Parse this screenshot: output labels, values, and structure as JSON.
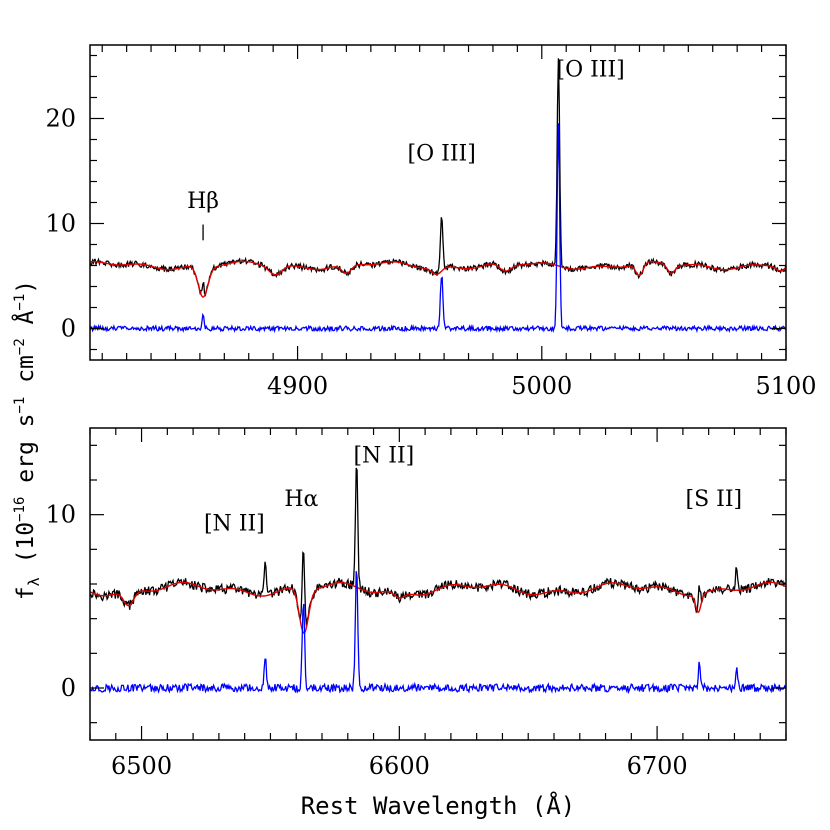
{
  "chart_data": [
    {
      "type": "line",
      "panel": "top",
      "xlim": [
        4815,
        5100
      ],
      "ylim": [
        -3,
        27
      ],
      "x_ticks": [
        4900,
        5000,
        5100
      ],
      "y_ticks": [
        0,
        10,
        20
      ],
      "x_tick_labels": [
        "4900",
        "5000",
        "5100"
      ],
      "y_tick_labels": [
        "0",
        "10",
        "20"
      ],
      "continuum_level": 6.0,
      "series": [
        {
          "role": "observed",
          "color": "#000000"
        },
        {
          "role": "model",
          "color": "#e00000"
        },
        {
          "role": "residual",
          "color": "#0000ff"
        }
      ],
      "absorption": [
        {
          "x": 4861.3,
          "depth": 3.0,
          "sigma": 2.0
        },
        {
          "x": 4891,
          "depth": 0.8,
          "sigma": 2.5
        },
        {
          "x": 4920,
          "depth": 0.9,
          "sigma": 2.0
        },
        {
          "x": 4957,
          "depth": 0.7,
          "sigma": 2.0
        },
        {
          "x": 4985,
          "depth": 0.8,
          "sigma": 2.5
        },
        {
          "x": 5040,
          "depth": 1.2,
          "sigma": 1.5
        },
        {
          "x": 5053,
          "depth": 0.8,
          "sigma": 1.5
        },
        {
          "x": 5098,
          "depth": 0.6,
          "sigma": 2.0
        }
      ],
      "emission": [
        {
          "x": 4861.3,
          "height": 1.4,
          "sigma": 0.4
        },
        {
          "x": 4959.0,
          "height": 5.2,
          "sigma": 0.5
        },
        {
          "x": 5006.8,
          "height": 19.5,
          "sigma": 0.5
        }
      ],
      "annotations": [
        {
          "text": "Hβ",
          "x": 4861.3,
          "y": 11.5,
          "tick": [
            8.4,
            9.9
          ]
        },
        {
          "text": "[O III]",
          "x": 4959,
          "y": 16.0
        },
        {
          "text": "[O III]",
          "x": 5020,
          "y": 24.0
        }
      ]
    },
    {
      "type": "line",
      "panel": "bottom",
      "xlim": [
        6480,
        6750
      ],
      "ylim": [
        -3,
        15
      ],
      "x_ticks": [
        6500,
        6600,
        6700
      ],
      "y_ticks": [
        0,
        10
      ],
      "x_tick_labels": [
        "6500",
        "6600",
        "6700"
      ],
      "y_tick_labels": [
        "0",
        "10"
      ],
      "continuum_level": 5.7,
      "series": [
        {
          "role": "observed",
          "color": "#000000"
        },
        {
          "role": "model",
          "color": "#e00000"
        },
        {
          "role": "residual",
          "color": "#0000ff"
        }
      ],
      "absorption": [
        {
          "x": 6495,
          "depth": 0.9,
          "sigma": 2.0
        },
        {
          "x": 6563,
          "depth": 2.6,
          "sigma": 1.8
        },
        {
          "x": 6600,
          "depth": 0.4,
          "sigma": 2.0
        },
        {
          "x": 6716,
          "depth": 1.0,
          "sigma": 1.0
        }
      ],
      "emission": [
        {
          "x": 6548.0,
          "height": 1.9,
          "sigma": 0.4
        },
        {
          "x": 6562.8,
          "height": 5.1,
          "sigma": 0.45
        },
        {
          "x": 6583.4,
          "height": 7.2,
          "sigma": 0.45
        },
        {
          "x": 6716.4,
          "height": 1.4,
          "sigma": 0.4
        },
        {
          "x": 6730.8,
          "height": 1.2,
          "sigma": 0.4
        }
      ],
      "annotations": [
        {
          "text": "[N II]",
          "x": 6536,
          "y": 9.1
        },
        {
          "text": "Hα",
          "x": 6562,
          "y": 10.5
        },
        {
          "text": "[N II]",
          "x": 6594,
          "y": 13.0
        },
        {
          "text": "[S II]",
          "x": 6722,
          "y": 10.5
        }
      ]
    }
  ],
  "labels": {
    "xlabel": "Rest Wavelength (Å)",
    "ylabel_prefix": "f",
    "ylabel_sub": "λ",
    "ylabel_rest": " (10",
    "ylabel_exp1": "−16",
    "ylabel_mid1": " erg s",
    "ylabel_exp2": "−1",
    "ylabel_mid2": " cm",
    "ylabel_exp3": "−2",
    "ylabel_mid3": " Å",
    "ylabel_exp4": "−1",
    "ylabel_end": ")"
  }
}
